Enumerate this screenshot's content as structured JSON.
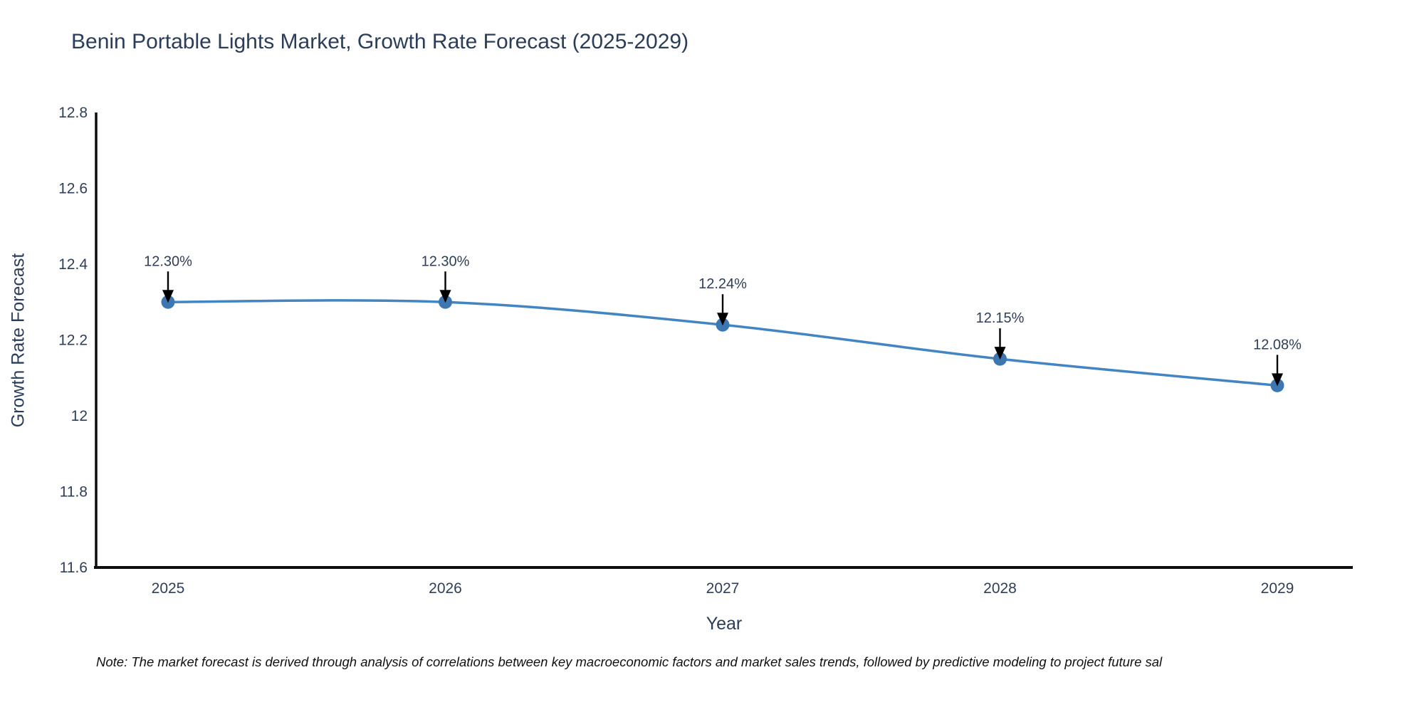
{
  "title": "Benin Portable Lights Market, Growth Rate Forecast (2025-2029)",
  "note": "Note: The market forecast is derived through analysis of correlations between key macroeconomic factors and market sales trends, followed by predictive modeling to project future sal",
  "chart_data": {
    "type": "line",
    "title": "Benin Portable Lights Market, Growth Rate Forecast (2025-2029)",
    "xlabel": "Year",
    "ylabel": "Growth Rate Forecast",
    "x": [
      2025,
      2026,
      2027,
      2028,
      2029
    ],
    "series": [
      {
        "name": "Growth Rate Forecast",
        "values": [
          12.3,
          12.3,
          12.24,
          12.15,
          12.08
        ]
      }
    ],
    "point_labels": [
      "12.30%",
      "12.30%",
      "12.24%",
      "12.15%",
      "12.08%"
    ],
    "xtick_labels": [
      "2025",
      "2026",
      "2027",
      "2028",
      "2029"
    ],
    "ytick_values": [
      11.6,
      11.8,
      12.0,
      12.2,
      12.4,
      12.6,
      12.8
    ],
    "ytick_labels": [
      "11.6",
      "11.8",
      "12",
      "12.2",
      "12.4",
      "12.6",
      "12.8"
    ],
    "ylim": [
      11.6,
      12.8
    ],
    "grid": false,
    "legend": "none",
    "line_shape": "spline",
    "colors": {
      "line": "#4285c2",
      "marker": "#3c77b2",
      "axis_line": "#0d0d0d",
      "arrow": "#000000",
      "title_text": "#2b3d59",
      "tick_text": "#2e3f57"
    }
  }
}
